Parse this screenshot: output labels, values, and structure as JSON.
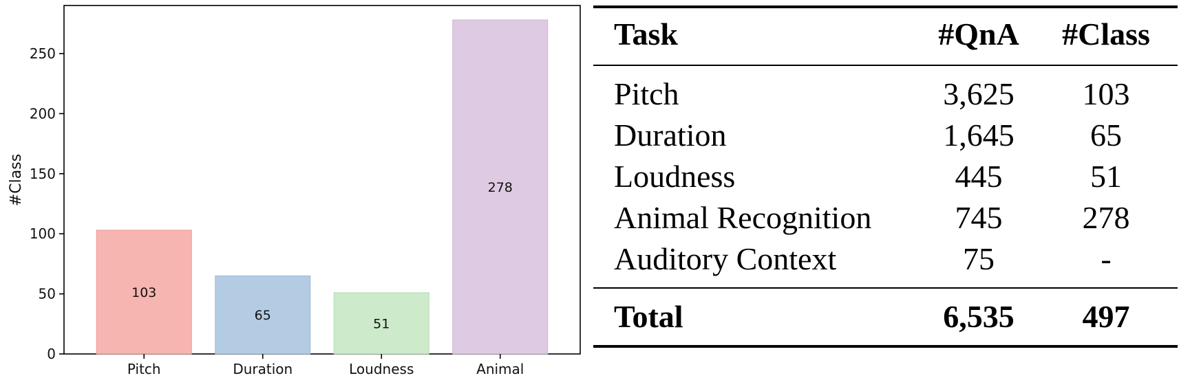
{
  "chart_data": {
    "type": "bar",
    "categories": [
      "Pitch",
      "Duration",
      "Loudness",
      "Animal"
    ],
    "values": [
      103,
      65,
      51,
      278
    ],
    "value_labels": [
      "103",
      "65",
      "51",
      "278"
    ],
    "colors": [
      "#f7b5b1",
      "#b4cce3",
      "#cdeacb",
      "#dfcae3"
    ],
    "bar_edge_colors": [
      "#f09a95",
      "#9dbbd8",
      "#b5dcb2",
      "#cfb4d6"
    ],
    "ylabel": "#Class",
    "xlabel": "",
    "ylim": [
      0,
      290
    ],
    "yticks": [
      0,
      50,
      100,
      150,
      200,
      250
    ],
    "grid": false
  },
  "table": {
    "headers": {
      "task": "Task",
      "qna": "#QnA",
      "class": "#Class"
    },
    "rows": [
      {
        "task": "Pitch",
        "qna": "3,625",
        "class": "103"
      },
      {
        "task": "Duration",
        "qna": "1,645",
        "class": "65"
      },
      {
        "task": "Loudness",
        "qna": "445",
        "class": "51"
      },
      {
        "task": "Animal Recognition",
        "qna": "745",
        "class": "278"
      },
      {
        "task": "Auditory Context",
        "qna": "75",
        "class": "-"
      }
    ],
    "total": {
      "task": "Total",
      "qna": "6,535",
      "class": "497"
    }
  }
}
